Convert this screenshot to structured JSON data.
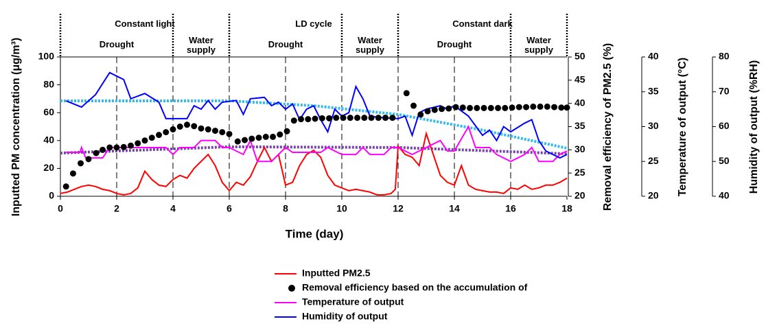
{
  "chart_data": {
    "type": "line",
    "xlabel": "Time (day)",
    "ylabel": "Inputted PM concentration (μg/m³)",
    "y2label": "Removal efficiency of PM2.5 (%)",
    "y3label": "Temperature of output (°C)",
    "y4label": "Humidity of output  (%RH)",
    "xlim": [
      0,
      18
    ],
    "xticks": [
      0,
      2,
      4,
      6,
      8,
      10,
      12,
      14,
      16,
      18
    ],
    "ylim": [
      0,
      100
    ],
    "yticks": [
      0,
      20,
      40,
      60,
      80,
      100
    ],
    "y2lim": [
      20,
      50
    ],
    "y2ticks": [
      20,
      25,
      30,
      35,
      40,
      45,
      50
    ],
    "y3lim": [
      20,
      40
    ],
    "y3ticks": [
      20,
      25,
      30,
      35,
      40
    ],
    "y4lim": [
      40,
      80
    ],
    "y4ticks": [
      40,
      50,
      60,
      70,
      80
    ],
    "phases": [
      {
        "label": "Constant light",
        "start": 0,
        "end": 6
      },
      {
        "label": "LD cycle",
        "start": 6,
        "end": 12
      },
      {
        "label": "Constant dark",
        "start": 12,
        "end": 18
      }
    ],
    "subphases": [
      {
        "label": "Drought",
        "start": 0,
        "end": 4
      },
      {
        "label": "Water supply",
        "start": 4,
        "end": 6
      },
      {
        "label": "Drought",
        "start": 6,
        "end": 10
      },
      {
        "label": "Water supply",
        "start": 10,
        "end": 12
      },
      {
        "label": "Drought",
        "start": 12,
        "end": 16
      },
      {
        "label": "Water supply",
        "start": 16,
        "end": 18
      }
    ],
    "series": [
      {
        "name": "Inputted PM2.5",
        "color": "#ff0000",
        "axis": "y",
        "x": [
          0,
          0.25,
          0.5,
          0.75,
          1,
          1.25,
          1.5,
          1.75,
          2,
          2.25,
          2.5,
          2.75,
          3,
          3.25,
          3.5,
          3.75,
          4,
          4.25,
          4.5,
          4.75,
          5,
          5.25,
          5.5,
          5.75,
          6,
          6.25,
          6.5,
          6.75,
          7,
          7.25,
          7.5,
          7.75,
          8,
          8.25,
          8.5,
          8.75,
          9,
          9.25,
          9.5,
          9.75,
          10,
          10.25,
          10.5,
          10.75,
          11,
          11.25,
          11.5,
          11.75,
          11.9,
          12,
          12.25,
          12.5,
          12.75,
          13,
          13.25,
          13.5,
          13.75,
          14,
          14.25,
          14.5,
          14.75,
          15,
          15.25,
          15.5,
          15.75,
          16,
          16.25,
          16.5,
          16.75,
          17,
          17.25,
          17.5,
          17.75,
          18
        ],
        "values": [
          2,
          3,
          5,
          7,
          8,
          7,
          5,
          4,
          2,
          1,
          2,
          6,
          18,
          12,
          8,
          7,
          12,
          15,
          13,
          20,
          25,
          30,
          22,
          10,
          4,
          10,
          8,
          14,
          25,
          35,
          25,
          30,
          8,
          10,
          22,
          30,
          33,
          28,
          15,
          8,
          6,
          4,
          5,
          4,
          3,
          1,
          1,
          2,
          5,
          36,
          30,
          28,
          22,
          45,
          30,
          15,
          10,
          8,
          22,
          8,
          5,
          4,
          3,
          3,
          2,
          6,
          5,
          8,
          5,
          6,
          8,
          8,
          10,
          13
        ]
      },
      {
        "name": "Removal efficiency based on the accumulation of",
        "color": "#000000",
        "axis": "y2",
        "marker": "circle",
        "x": [
          0.2,
          0.45,
          0.72,
          1,
          1.27,
          1.5,
          1.75,
          2,
          2.25,
          2.5,
          2.75,
          3,
          3.25,
          3.5,
          3.75,
          4,
          4.25,
          4.5,
          4.75,
          5,
          5.25,
          5.5,
          5.75,
          6,
          6.3,
          6.55,
          6.8,
          7.05,
          7.3,
          7.55,
          7.8,
          8.05,
          8.3,
          8.55,
          8.8,
          9.05,
          9.3,
          9.55,
          9.8,
          10.05,
          10.3,
          10.55,
          10.8,
          11.05,
          11.3,
          11.55,
          11.8,
          12.3,
          12.55,
          12.8,
          13.05,
          13.3,
          13.55,
          13.8,
          14.05,
          14.3,
          14.55,
          14.8,
          15.05,
          15.3,
          15.55,
          15.8,
          16.05,
          16.3,
          16.55,
          16.8,
          17.05,
          17.3,
          17.55,
          17.8,
          18
        ],
        "values": [
          22.1,
          24.9,
          27.1,
          28,
          29.3,
          30,
          30.5,
          30.5,
          30.6,
          30.9,
          31.4,
          32,
          32.6,
          33.2,
          33.8,
          34.4,
          35,
          35.4,
          35.1,
          34.6,
          34.4,
          34.1,
          33.8,
          33.4,
          31.8,
          32.1,
          32.4,
          32.6,
          32.8,
          32.8,
          33.3,
          34,
          36.3,
          36.6,
          36.6,
          36.7,
          36.8,
          36.8,
          36.9,
          36.9,
          36.9,
          36.9,
          36.9,
          36.9,
          36.9,
          36.9,
          36.9,
          42.2,
          39.5,
          37.6,
          38.3,
          38.6,
          38.8,
          38.9,
          39.2,
          39.1,
          39,
          39,
          39,
          39,
          39,
          39,
          39.1,
          39.2,
          39.2,
          39.3,
          39.3,
          39.3,
          39.2,
          39.1,
          39.1
        ]
      },
      {
        "name": "Temperature of output",
        "color": "#ff00ff",
        "axis": "y3",
        "x": [
          0.2,
          0.7,
          0.75,
          0.9,
          1.5,
          1.75,
          2,
          3.75,
          4,
          4.25,
          4.75,
          5,
          5.5,
          5.75,
          6,
          6.5,
          6.75,
          7,
          7.5,
          7.75,
          8,
          8.25,
          9.25,
          9.5,
          10,
          10.5,
          10.75,
          11,
          11.5,
          11.75,
          12,
          12.5,
          13,
          13.5,
          13.75,
          14,
          14.5,
          14.75,
          15.25,
          15.5,
          16,
          16.5,
          16.75,
          17,
          17.5,
          17.75,
          18
        ],
        "values": [
          26.3,
          26.3,
          27,
          25.5,
          25.5,
          27,
          27,
          27,
          26,
          27,
          27,
          28,
          28,
          27,
          27,
          26,
          28,
          25,
          25,
          26,
          27,
          26.3,
          26.3,
          27,
          26,
          26,
          27,
          26,
          26,
          27,
          27,
          26,
          27,
          28,
          26.5,
          26.5,
          30,
          27,
          27,
          26,
          25,
          26,
          27,
          25,
          25,
          26,
          26.5
        ]
      },
      {
        "name": "Humidity of output",
        "color": "#0000ff",
        "axis": "y4",
        "x": [
          0.2,
          0.75,
          1.25,
          1.75,
          2.25,
          2.5,
          3,
          3.5,
          3.75,
          4.5,
          4.75,
          5,
          5.25,
          5.5,
          5.75,
          6.25,
          6.5,
          6.75,
          7.25,
          7.5,
          7.75,
          8,
          8.25,
          8.5,
          8.75,
          9,
          9.25,
          9.5,
          9.75,
          10,
          10.25,
          10.5,
          10.75,
          11,
          11.5,
          12,
          12.25,
          12.5,
          12.75,
          13,
          13.5,
          13.75,
          14,
          14.5,
          15,
          15.25,
          15.5,
          15.75,
          16,
          16.5,
          16.75,
          17,
          17.25,
          17.5,
          17.75,
          18
        ],
        "values": [
          67.4,
          65.6,
          69.2,
          75.5,
          73.5,
          68,
          69.5,
          67,
          62.3,
          62.3,
          66,
          65,
          67.5,
          65,
          67,
          67.5,
          63.5,
          68,
          68.4,
          66,
          67,
          65,
          66.5,
          62,
          65,
          66,
          62,
          58.5,
          65,
          63,
          64,
          71.5,
          68,
          63,
          62.5,
          62.3,
          63,
          57.5,
          64,
          65,
          66,
          65,
          66,
          63,
          57.5,
          59,
          56,
          60,
          58.5,
          61,
          62,
          56,
          53,
          52,
          51,
          52
        ]
      },
      {
        "color": "#33bbee",
        "axis": "y4",
        "style": "dotted",
        "x": [
          0,
          6,
          9,
          12,
          15,
          18
        ],
        "values": [
          67.4,
          67.4,
          66,
          63.5,
          59,
          53.8
        ]
      },
      {
        "color": "#7744aa",
        "axis": "y3",
        "style": "dotted",
        "x": [
          0,
          6,
          12,
          18
        ],
        "values": [
          26.2,
          27.1,
          27,
          26.1
        ]
      }
    ]
  }
}
